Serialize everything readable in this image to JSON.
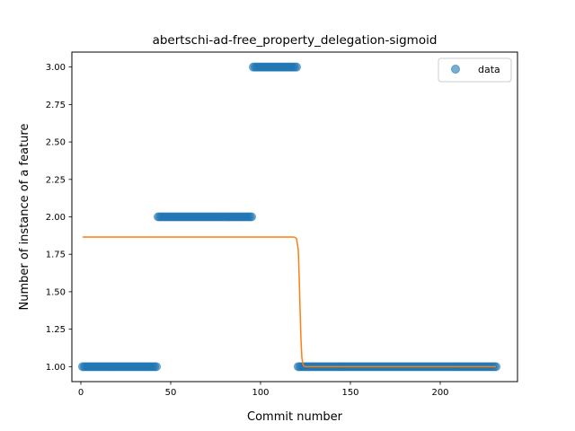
{
  "chart_data": {
    "type": "scatter",
    "title": "abertschi-ad-free_property_delegation-sigmoid",
    "xlabel": "Commit number",
    "ylabel": "Number of instance of a feature",
    "xlim": [
      -5,
      243
    ],
    "ylim": [
      0.9,
      3.1
    ],
    "xticks": [
      0,
      50,
      100,
      150,
      200
    ],
    "yticks": [
      1.0,
      1.25,
      1.5,
      1.75,
      2.0,
      2.25,
      2.5,
      2.75,
      3.0
    ],
    "ytick_labels": [
      "1.00",
      "1.25",
      "1.50",
      "1.75",
      "2.00",
      "2.25",
      "2.50",
      "2.75",
      "3.00"
    ],
    "legend": {
      "position": "top-right",
      "entries": [
        "data"
      ]
    },
    "colors": {
      "data": "#1f77b4",
      "fit": "#ff7f0e"
    },
    "data_segments": [
      {
        "x_start": 1,
        "x_end": 42,
        "y": 1
      },
      {
        "x_start": 43,
        "x_end": 95,
        "y": 2
      },
      {
        "x_start": 96,
        "x_end": 120,
        "y": 3
      },
      {
        "x_start": 121,
        "x_end": 231,
        "y": 1
      }
    ],
    "fit_line": {
      "x": [
        1,
        118,
        119,
        120,
        121,
        121.5,
        122,
        122.5,
        123,
        123.5,
        124,
        125,
        231
      ],
      "y": [
        1.865,
        1.865,
        1.864,
        1.855,
        1.78,
        1.6,
        1.38,
        1.18,
        1.06,
        1.02,
        1.005,
        1.0,
        1.0
      ]
    }
  }
}
